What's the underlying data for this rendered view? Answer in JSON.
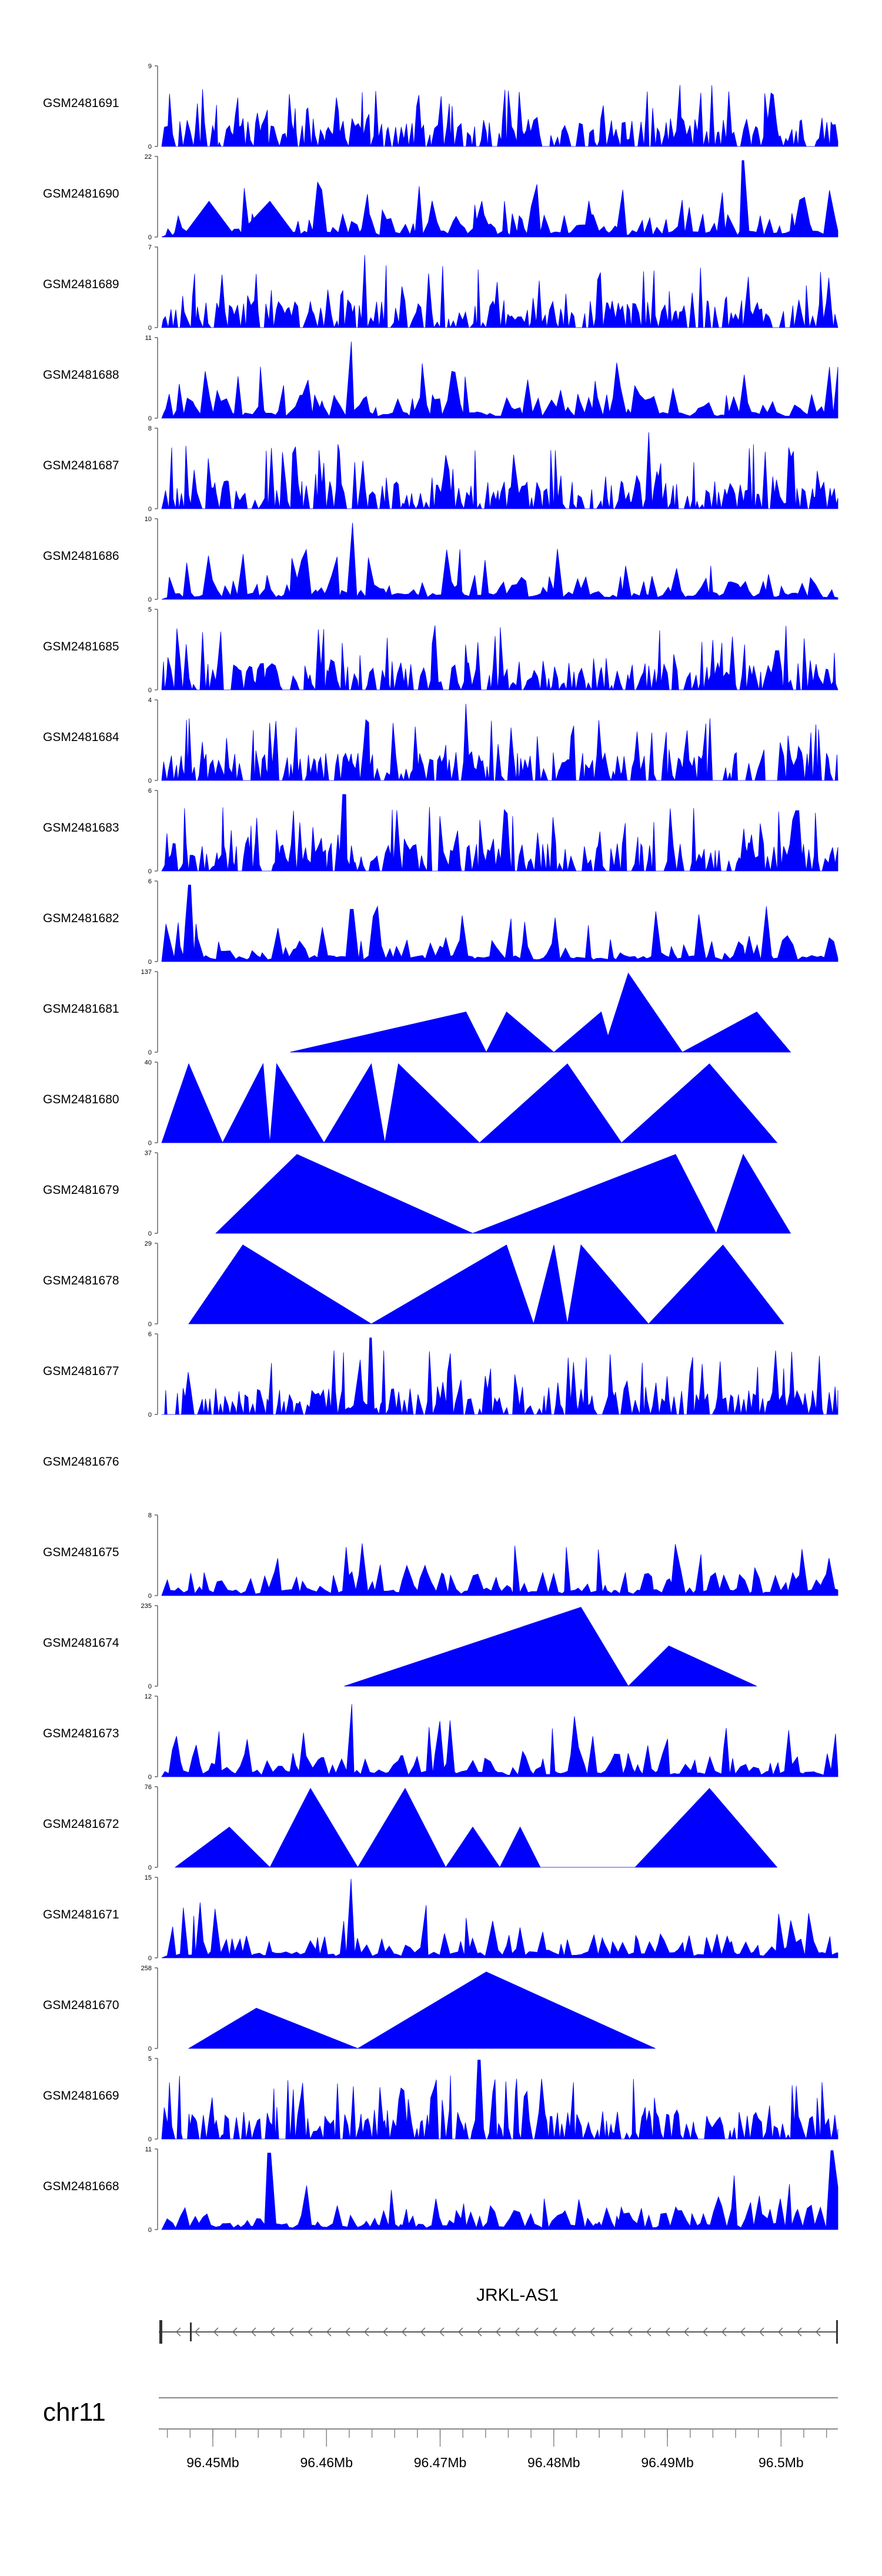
{
  "chart_data": {
    "type": "area",
    "chromosome": "chr11",
    "gene": "JRKL-AS1",
    "genomic_ticks": [
      "96.45Mb",
      "96.46Mb",
      "96.47Mb",
      "96.48Mb",
      "96.49Mb",
      "96.5Mb"
    ],
    "color": "#0000ff",
    "tracks": [
      {
        "name": "GSM2481691",
        "ymax": "9",
        "ymin": "0",
        "style": "dense",
        "peaks": []
      },
      {
        "name": "GSM2481690",
        "ymax": "22",
        "ymin": "0",
        "style": "mixed",
        "peaks": [
          [
            0.4,
            0.45
          ],
          [
            0.63,
            0.45
          ],
          [
            0.5,
            0.45
          ],
          [
            0.77,
            0.46
          ],
          [
            0.86,
            0.95
          ],
          [
            0.94,
            0.46
          ]
        ]
      },
      {
        "name": "GSM2481689",
        "ymax": "7",
        "ymin": "0",
        "style": "dense",
        "peaks": [
          [
            0.3,
            0.9
          ]
        ]
      },
      {
        "name": "GSM2481688",
        "ymax": "11",
        "ymin": "0",
        "style": "sparse",
        "peaks": [
          [
            0.28,
            0.95
          ]
        ]
      },
      {
        "name": "GSM2481687",
        "ymax": "8",
        "ymin": "0",
        "style": "dense",
        "peaks": [
          [
            0.72,
            0.95
          ]
        ]
      },
      {
        "name": "GSM2481686",
        "ymax": "10",
        "ymin": "0",
        "style": "sparse",
        "peaks": [
          [
            0.28,
            0.95
          ]
        ]
      },
      {
        "name": "GSM2481685",
        "ymax": "5",
        "ymin": "0",
        "style": "dense",
        "peaks": []
      },
      {
        "name": "GSM2481684",
        "ymax": "4",
        "ymin": "0",
        "style": "dense",
        "peaks": [
          [
            0.45,
            0.95
          ]
        ]
      },
      {
        "name": "GSM2481683",
        "ymax": "6",
        "ymin": "0",
        "style": "dense",
        "peaks": [
          [
            0.27,
            0.95
          ],
          [
            0.94,
            0.75
          ]
        ]
      },
      {
        "name": "GSM2481682",
        "ymax": "6",
        "ymin": "0",
        "style": "sparse",
        "peaks": [
          [
            0.04,
            0.95
          ],
          [
            0.28,
            0.65
          ]
        ]
      },
      {
        "name": "GSM2481681",
        "ymax": "137",
        "ymin": "0",
        "style": "triangles",
        "peaks": [
          [
            0.19,
            0.0
          ],
          [
            0.45,
            0.5
          ],
          [
            0.48,
            0.0
          ],
          [
            0.51,
            0.5
          ],
          [
            0.58,
            0.0
          ],
          [
            0.65,
            0.5
          ],
          [
            0.66,
            0.2
          ],
          [
            0.69,
            0.98
          ],
          [
            0.77,
            0.0
          ],
          [
            0.88,
            0.5
          ],
          [
            0.93,
            0.0
          ]
        ]
      },
      {
        "name": "GSM2481680",
        "ymax": "40",
        "ymin": "0",
        "style": "triangles",
        "peaks": [
          [
            0.0,
            0.0
          ],
          [
            0.04,
            0.98
          ],
          [
            0.09,
            0.0
          ],
          [
            0.15,
            0.98
          ],
          [
            0.16,
            0.0
          ],
          [
            0.17,
            0.98
          ],
          [
            0.24,
            0.0
          ],
          [
            0.31,
            0.98
          ],
          [
            0.33,
            0.0
          ],
          [
            0.35,
            0.98
          ],
          [
            0.47,
            0.0
          ],
          [
            0.6,
            0.98
          ],
          [
            0.68,
            0.0
          ],
          [
            0.81,
            0.98
          ],
          [
            0.91,
            0.0
          ]
        ]
      },
      {
        "name": "GSM2481679",
        "ymax": "37",
        "ymin": "0",
        "style": "triangles",
        "peaks": [
          [
            0.08,
            0.0
          ],
          [
            0.2,
            0.98
          ],
          [
            0.46,
            0.0
          ],
          [
            0.76,
            0.98
          ],
          [
            0.82,
            0.0
          ],
          [
            0.86,
            0.98
          ],
          [
            0.93,
            0.0
          ]
        ]
      },
      {
        "name": "GSM2481678",
        "ymax": "29",
        "ymin": "0",
        "style": "triangles",
        "peaks": [
          [
            0.04,
            0.0
          ],
          [
            0.12,
            0.98
          ],
          [
            0.31,
            0.0
          ],
          [
            0.51,
            0.98
          ],
          [
            0.55,
            0.0
          ],
          [
            0.58,
            0.98
          ],
          [
            0.6,
            0.0
          ],
          [
            0.62,
            0.98
          ],
          [
            0.72,
            0.0
          ],
          [
            0.83,
            0.98
          ],
          [
            0.92,
            0.0
          ]
        ]
      },
      {
        "name": "GSM2481677",
        "ymax": "6",
        "ymin": "0",
        "style": "dense",
        "peaks": [
          [
            0.31,
            0.95
          ]
        ]
      },
      {
        "name": "GSM2481676",
        "ymax": "",
        "ymin": "",
        "style": "empty",
        "peaks": []
      },
      {
        "name": "GSM2481675",
        "ymax": "8",
        "ymin": "0",
        "style": "sparse",
        "peaks": []
      },
      {
        "name": "GSM2481674",
        "ymax": "235",
        "ymin": "0",
        "style": "triangles",
        "peaks": [
          [
            0.27,
            0.0
          ],
          [
            0.62,
            0.98
          ],
          [
            0.69,
            0.0
          ],
          [
            0.75,
            0.5
          ],
          [
            0.88,
            0.0
          ]
        ]
      },
      {
        "name": "GSM2481673",
        "ymax": "12",
        "ymin": "0",
        "style": "sparse",
        "peaks": [
          [
            0.28,
            0.9
          ],
          [
            0.61,
            0.75
          ],
          [
            0.8,
            0.98
          ]
        ]
      },
      {
        "name": "GSM2481672",
        "ymax": "76",
        "ymin": "0",
        "style": "triangles",
        "peaks": [
          [
            0.02,
            0.0
          ],
          [
            0.1,
            0.5
          ],
          [
            0.16,
            0.0
          ],
          [
            0.22,
            0.98
          ],
          [
            0.29,
            0.0
          ],
          [
            0.36,
            0.98
          ],
          [
            0.42,
            0.0
          ],
          [
            0.46,
            0.5
          ],
          [
            0.5,
            0.0
          ],
          [
            0.53,
            0.5
          ],
          [
            0.56,
            0.0
          ],
          [
            0.7,
            0.0
          ],
          [
            0.81,
            0.98
          ],
          [
            0.91,
            0.0
          ]
        ]
      },
      {
        "name": "GSM2481671",
        "ymax": "15",
        "ymin": "0",
        "style": "sparse",
        "peaks": [
          [
            0.28,
            0.98
          ]
        ]
      },
      {
        "name": "GSM2481670",
        "ymax": "258",
        "ymin": "0",
        "style": "triangles",
        "peaks": [
          [
            0.04,
            0.0
          ],
          [
            0.14,
            0.5
          ],
          [
            0.29,
            0.0
          ],
          [
            0.48,
            0.95
          ],
          [
            0.73,
            0.0
          ]
        ]
      },
      {
        "name": "GSM2481669",
        "ymax": "5",
        "ymin": "0",
        "style": "dense",
        "peaks": [
          [
            0.47,
            0.98
          ]
        ]
      },
      {
        "name": "GSM2481668",
        "ymax": "11",
        "ymin": "0",
        "style": "sparse",
        "peaks": [
          [
            0.16,
            0.95
          ],
          [
            0.99,
            0.98
          ]
        ]
      }
    ]
  }
}
